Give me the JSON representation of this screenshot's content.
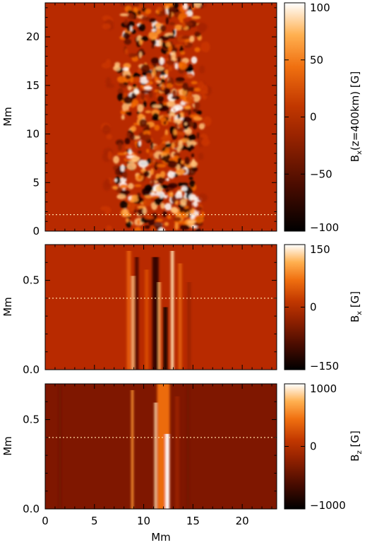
{
  "chart_data": [
    {
      "type": "heatmap",
      "xlabel": "",
      "ylabel": "Mm",
      "xlim": [
        0,
        23.5
      ],
      "ylim": [
        0,
        23.5
      ],
      "x_ticks": [
        0,
        5,
        10,
        15,
        20
      ],
      "y_ticks": [
        0,
        5,
        10,
        15,
        20
      ],
      "y_tick_labels": [
        "0",
        "5",
        "10",
        "15",
        "20"
      ],
      "colorbar": {
        "label": "Bₓ(z=400km) [G]",
        "range": [
          -100,
          100
        ],
        "ticks": [
          100,
          50,
          0,
          -50,
          -100
        ],
        "tick_labels": [
          "100",
          "50",
          "0",
          "−50",
          "−100"
        ]
      },
      "cut_line_y": 1.7,
      "colormap": [
        "#000000",
        "#7a1500",
        "#b82a00",
        "#ff8c1a",
        "#ffffff"
      ],
      "active_band_x": [
        7.5,
        15.5
      ]
    },
    {
      "type": "heatmap",
      "xlabel": "",
      "ylabel": "Mm",
      "xlim": [
        0,
        23.5
      ],
      "ylim": [
        0,
        0.7
      ],
      "x_ticks": [
        0,
        5,
        10,
        15,
        20
      ],
      "y_ticks": [
        0.0,
        0.5
      ],
      "y_tick_labels": [
        "0.0",
        "0.5"
      ],
      "colorbar": {
        "label": "Bₓ [G]",
        "range": [
          -150,
          150
        ],
        "ticks": [
          150,
          0,
          -150
        ],
        "tick_labels": [
          "150",
          "0",
          "−150"
        ]
      },
      "cut_line_y": 0.4,
      "colormap": [
        "#000000",
        "#7a1500",
        "#b82a00",
        "#ff8c1a",
        "#ffffff"
      ]
    },
    {
      "type": "heatmap",
      "xlabel": "Mm",
      "ylabel": "Mm",
      "xlim": [
        0,
        23.5
      ],
      "ylim": [
        0,
        0.7
      ],
      "x_ticks": [
        0,
        5,
        10,
        15,
        20
      ],
      "x_tick_labels": [
        "0",
        "5",
        "10",
        "15",
        "20"
      ],
      "y_ticks": [
        0.0,
        0.5
      ],
      "y_tick_labels": [
        "0.0",
        "0.5"
      ],
      "colorbar": {
        "label": "B_z [G]",
        "range": [
          -1000,
          1000
        ],
        "ticks": [
          1000,
          0,
          -1000
        ],
        "tick_labels": [
          "1000",
          "0",
          "−1000"
        ]
      },
      "cut_line_y": 0.4,
      "colormap": [
        "#000000",
        "#7a1500",
        "#b82a00",
        "#ff8c1a",
        "#ffffff"
      ]
    }
  ]
}
